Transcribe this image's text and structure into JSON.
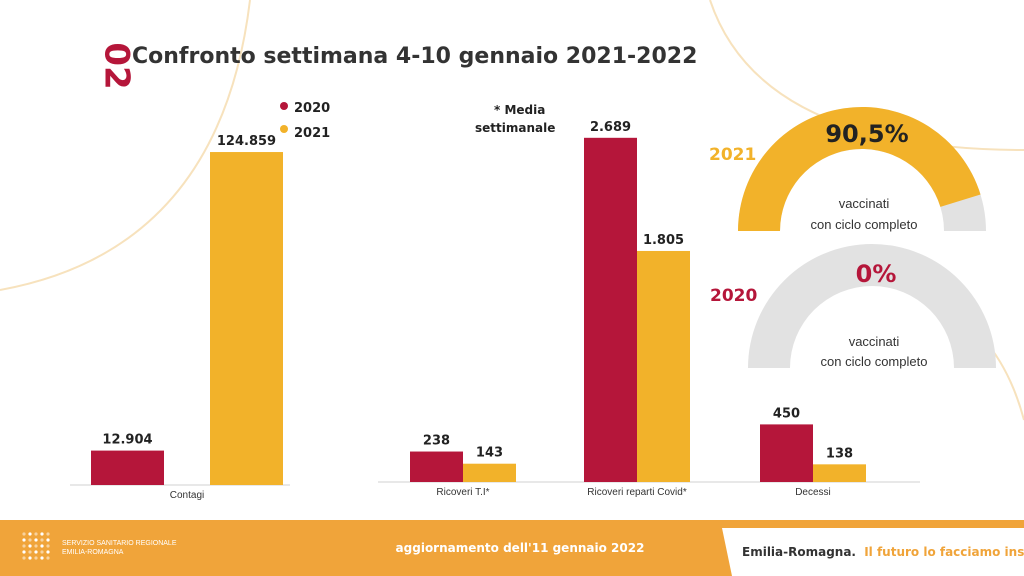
{
  "section_number": "02",
  "title": "Confronto settimana 4-10 gennaio  2021-2022",
  "note": "* Media settimanale",
  "colors": {
    "y2020": "#b5163a",
    "y2021": "#f2b22a",
    "footer": "#f0a43a",
    "gauge_bg": "#e2e2e2",
    "text": "#333333"
  },
  "legend": [
    {
      "label": "2020",
      "color": "#b5163a"
    },
    {
      "label": "2021",
      "color": "#f2b22a"
    }
  ],
  "chart_data": [
    {
      "type": "bar",
      "categories": [
        "Contagi"
      ],
      "series": [
        {
          "name": "2020",
          "values": [
            12904
          ],
          "labels": [
            "12.904"
          ]
        },
        {
          "name": "2021",
          "values": [
            124859
          ],
          "labels": [
            "124.859"
          ]
        }
      ],
      "ylim": [
        0,
        150000
      ]
    },
    {
      "type": "bar",
      "categories": [
        "Ricoveri T.I*",
        "Ricoveri reparti Covid*",
        "Decessi"
      ],
      "series": [
        {
          "name": "2020",
          "values": [
            238,
            2689,
            450
          ],
          "labels": [
            "238",
            "2.689",
            "450"
          ]
        },
        {
          "name": "2021",
          "values": [
            143,
            1805,
            138
          ],
          "labels": [
            "143",
            "1.805",
            "138"
          ]
        }
      ],
      "ylim": [
        0,
        3000
      ]
    }
  ],
  "gauges": [
    {
      "year": "2021",
      "value": 0.905,
      "value_label": "90,5%",
      "line1": "vaccinati",
      "line2": "con ciclo completo",
      "year_color": "#f2b22a",
      "value_color": "#222222"
    },
    {
      "year": "2020",
      "value": 0,
      "value_label": "0%",
      "line1": "vaccinati",
      "line2": "con ciclo completo",
      "year_color": "#b5163a",
      "value_color": "#b5163a"
    }
  ],
  "footer": {
    "org_line1": "SERVIZIO SANITARIO REGIONALE",
    "org_line2": "EMILIA-ROMAGNA",
    "update_text": "aggiornamento dell'11 gennaio 2022",
    "brand": "Emilia-Romagna.",
    "slogan": "Il futuro lo facciamo insieme."
  }
}
